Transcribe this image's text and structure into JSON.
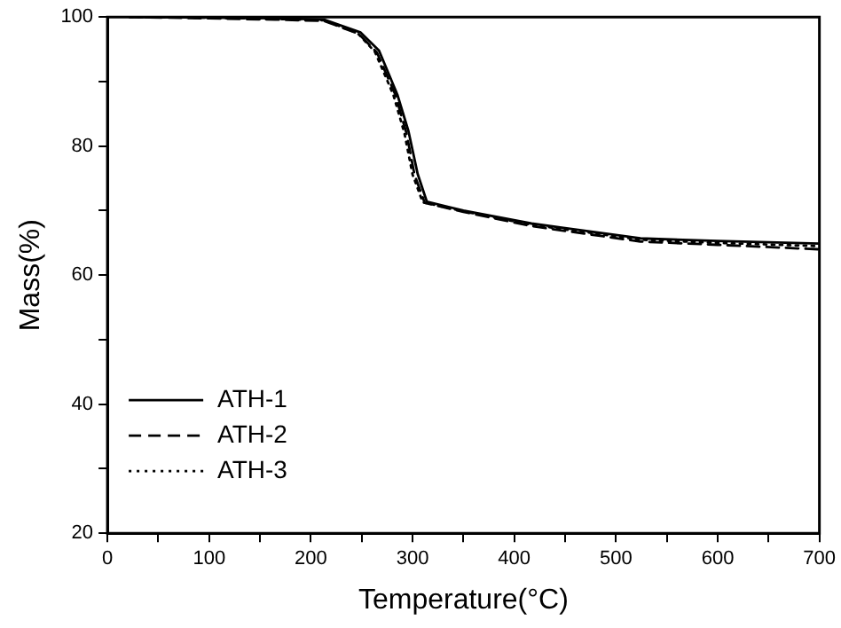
{
  "chart_data": {
    "type": "line",
    "xlabel": "Temperature(°C)",
    "ylabel": "Mass(%)",
    "xlim": [
      0,
      700
    ],
    "ylim": [
      20,
      100
    ],
    "xticks": [
      0,
      {
        "value": 50,
        "label": null
      },
      100,
      {
        "value": 150,
        "label": null
      },
      200,
      {
        "value": 250,
        "label": null
      },
      300,
      {
        "value": 350,
        "label": null
      },
      400,
      {
        "value": 450,
        "label": null
      },
      500,
      {
        "value": 550,
        "label": null
      },
      600,
      {
        "value": 650,
        "label": null
      },
      700
    ],
    "yticks": [
      20,
      {
        "value": 30,
        "label": null
      },
      40,
      {
        "value": 50,
        "label": null
      },
      60,
      {
        "value": 70,
        "label": null
      },
      80,
      {
        "value": 90,
        "label": null
      },
      100
    ],
    "grid": false,
    "legend": "bottom left",
    "marker": "none",
    "series": [
      {
        "name": "ATH-1",
        "color": "#000000",
        "line_style": "solid",
        "x": [
          22,
          100,
          165,
          213,
          249,
          267,
          285,
          296,
          305,
          314,
          350,
          417,
          524,
          600,
          700
        ],
        "values": [
          100,
          99.9,
          99.8,
          99.6,
          97.6,
          94.8,
          88,
          82.3,
          75.7,
          71.4,
          70,
          68,
          65.7,
          65.3,
          64.9
        ]
      },
      {
        "name": "ATH-2",
        "color": "#000000",
        "line_style": "dashed",
        "x": [
          22,
          100,
          165,
          213,
          247,
          265,
          283,
          294,
          302,
          312,
          350,
          417,
          524,
          600,
          700
        ],
        "values": [
          100,
          99.8,
          99.6,
          99.4,
          97.4,
          94.5,
          88,
          82,
          75.5,
          71.2,
          69.8,
          67.6,
          65.2,
          64.7,
          64
        ]
      },
      {
        "name": "ATH-3",
        "color": "#000000",
        "line_style": "dotted",
        "x": [
          22,
          100,
          165,
          213,
          246,
          263,
          281,
          292,
          300,
          310,
          350,
          417,
          524,
          600,
          700
        ],
        "values": [
          100,
          99.9,
          99.7,
          99.5,
          97.5,
          94.6,
          88,
          82,
          75.6,
          71.3,
          69.9,
          67.8,
          65.5,
          65,
          64.5
        ]
      }
    ]
  }
}
